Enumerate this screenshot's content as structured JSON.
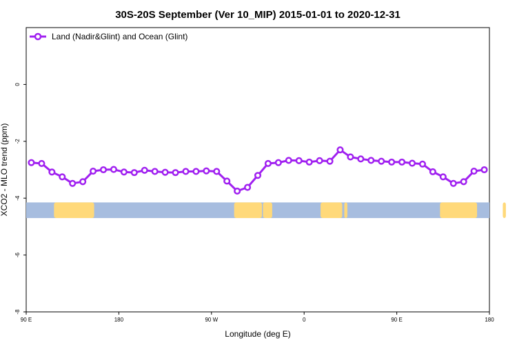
{
  "chart_data": {
    "type": "line",
    "title": "30S-20S September (Ver 10_MIP)   2015-01-01 to 2020-12-31",
    "xlabel": "Longitude (deg E)",
    "ylabel": "XCO2 - MLO trend (ppm)",
    "xlim": [
      90,
      540
    ],
    "ylim": [
      -8,
      2
    ],
    "x_ticks": [
      {
        "value": 90,
        "label": "90 E"
      },
      {
        "value": 180,
        "label": "180"
      },
      {
        "value": 270,
        "label": "90 W"
      },
      {
        "value": 360,
        "label": "0"
      },
      {
        "value": 450,
        "label": "90 E"
      },
      {
        "value": 540,
        "label": "180"
      }
    ],
    "y_ticks": [
      {
        "value": -8,
        "label": "-8"
      },
      {
        "value": -6,
        "label": "-6"
      },
      {
        "value": -4,
        "label": "-4"
      },
      {
        "value": -2,
        "label": "-2"
      },
      {
        "value": 0,
        "label": "0"
      }
    ],
    "legend": {
      "position": "top-left"
    },
    "series": [
      {
        "name": "Land (Nadir&Glint) and Ocean (Glint)",
        "color": "#a020f0",
        "x": [
          95,
          105,
          115,
          125,
          135,
          145,
          155,
          165,
          175,
          185,
          195,
          205,
          215,
          225,
          235,
          245,
          255,
          265,
          275,
          285,
          295,
          305,
          315,
          325,
          335,
          345,
          355,
          365,
          375,
          385,
          395,
          405,
          415,
          425,
          435,
          445,
          455,
          465,
          475,
          485,
          495,
          505,
          515,
          525,
          535
        ],
        "values": [
          -2.75,
          -2.78,
          -3.08,
          -3.25,
          -3.48,
          -3.42,
          -3.05,
          -3.0,
          -2.99,
          -3.08,
          -3.1,
          -3.02,
          -3.06,
          -3.09,
          -3.1,
          -3.06,
          -3.06,
          -3.04,
          -3.06,
          -3.4,
          -3.75,
          -3.62,
          -3.2,
          -2.78,
          -2.75,
          -2.67,
          -2.68,
          -2.73,
          -2.68,
          -2.7,
          -2.3,
          -2.55,
          -2.62,
          -2.67,
          -2.7,
          -2.73,
          -2.73,
          -2.77,
          -2.8,
          -3.07,
          -3.25,
          -3.48,
          -3.42,
          -3.05,
          -3.0
        ]
      }
    ],
    "land_strip": {
      "ocean_color": "#a7bddf",
      "land_color": "#ffd97a",
      "y_range": [
        -4.7,
        -4.15
      ],
      "land_spans": [
        [
          117,
          156
        ],
        [
          153,
          155
        ],
        [
          292,
          319
        ],
        [
          320,
          329
        ],
        [
          376,
          397
        ],
        [
          399,
          402
        ],
        [
          492,
          528
        ],
        [
          553,
          556
        ]
      ]
    }
  }
}
